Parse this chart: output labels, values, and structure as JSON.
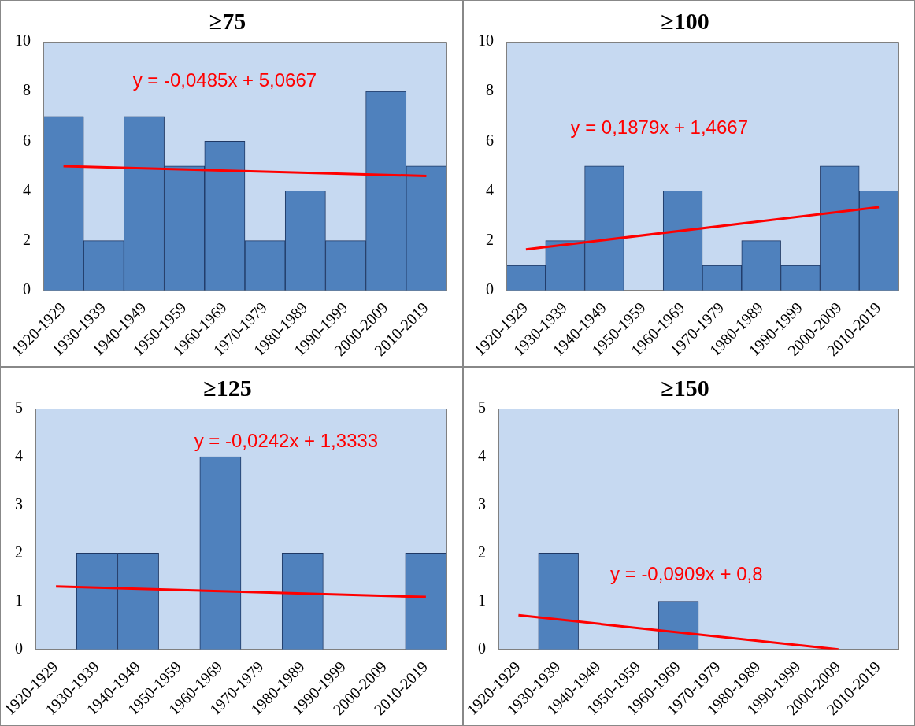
{
  "chart_data": [
    {
      "type": "bar",
      "title": "≥75",
      "categories": [
        "1920-1929",
        "1930-1939",
        "1940-1949",
        "1950-1959",
        "1960-1969",
        "1970-1979",
        "1980-1989",
        "1990-1999",
        "2000-2009",
        "2010-2019"
      ],
      "ylim": [
        0,
        10
      ],
      "yticks": [
        0,
        2,
        4,
        6,
        8,
        10
      ],
      "grid": false,
      "legend": false,
      "series": [
        {
          "color": "#4f81bd",
          "values": [
            7,
            2,
            7,
            5,
            6,
            2,
            4,
            2,
            8,
            5
          ]
        },
        {
          "type": "line",
          "color": "#ff0000",
          "x": [
            "1920-1929",
            "2010-2019"
          ],
          "values": [
            5.0,
            4.6
          ]
        }
      ],
      "annotations": [
        "y = -0,0485x + 5,0667"
      ]
    },
    {
      "type": "bar",
      "title": "≥100",
      "categories": [
        "1920-1929",
        "1930-1939",
        "1940-1949",
        "1950-1959",
        "1960-1969",
        "1970-1979",
        "1980-1989",
        "1990-1999",
        "2000-2009",
        "2010-2019"
      ],
      "ylim": [
        0,
        10
      ],
      "yticks": [
        0,
        2,
        4,
        6,
        8,
        10
      ],
      "grid": false,
      "legend": false,
      "series": [
        {
          "color": "#4f81bd",
          "values": [
            1,
            2,
            5,
            0,
            4,
            1,
            2,
            1,
            5,
            4
          ]
        },
        {
          "type": "line",
          "color": "#ff0000",
          "x": [
            "1920-1929",
            "2010-2019"
          ],
          "values": [
            1.65,
            3.35
          ]
        }
      ],
      "annotations": [
        "y = 0,1879x + 1,4667"
      ]
    },
    {
      "type": "bar",
      "title": "≥125",
      "categories": [
        "1920-1929",
        "1930-1939",
        "1940-1949",
        "1950-1959",
        "1960-1969",
        "1970-1979",
        "1980-1989",
        "1990-1999",
        "2000-2009",
        "2010-2019"
      ],
      "ylim": [
        0,
        5
      ],
      "yticks": [
        0,
        1,
        2,
        3,
        4,
        5
      ],
      "grid": false,
      "legend": false,
      "series": [
        {
          "color": "#4f81bd",
          "values": [
            0,
            2,
            2,
            0,
            4,
            0,
            2,
            0,
            0,
            2
          ]
        },
        {
          "type": "line",
          "color": "#ff0000",
          "x": [
            "1920-1929",
            "2010-2019"
          ],
          "values": [
            1.31,
            1.09
          ]
        }
      ],
      "annotations": [
        "y = -0,0242x + 1,3333"
      ]
    },
    {
      "type": "bar",
      "title": "≥150",
      "categories": [
        "1920-1929",
        "1930-1939",
        "1940-1949",
        "1950-1959",
        "1960-1969",
        "1970-1979",
        "1980-1989",
        "1990-1999",
        "2000-2009",
        "2010-2019"
      ],
      "ylim": [
        0,
        5
      ],
      "yticks": [
        0,
        1,
        2,
        3,
        4,
        5
      ],
      "grid": false,
      "legend": false,
      "series": [
        {
          "color": "#4f81bd",
          "values": [
            0,
            2,
            0,
            0,
            1,
            0,
            0,
            0,
            0,
            0
          ]
        },
        {
          "type": "line",
          "color": "#ff0000",
          "x": [
            "1920-1929",
            "2000-2009"
          ],
          "values": [
            0.71,
            0
          ]
        }
      ],
      "annotations": [
        "y = -0,0909x + 0,8"
      ]
    }
  ]
}
